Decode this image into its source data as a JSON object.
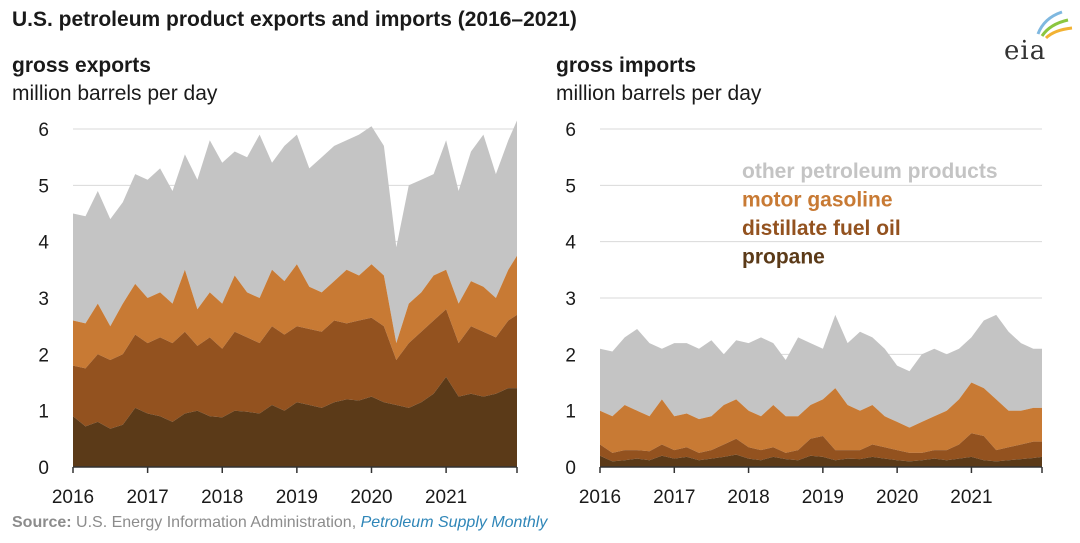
{
  "title": "U.S. petroleum product exports and imports (2016–2021)",
  "logo_text": "eia",
  "source": {
    "label": "Source:",
    "text": " U.S. Energy Information Administration, ",
    "publication": "Petroleum Supply Monthly"
  },
  "colors": {
    "propane": "#5b3a18",
    "distillate": "#93521f",
    "gasoline": "#c87a34",
    "other": "#c4c4c4",
    "grid": "#d9d9d9",
    "axis": "#333333"
  },
  "chart_data": [
    {
      "type": "area",
      "panel": "exports",
      "title": "gross exports",
      "ylabel": "million barrels per day",
      "ylim": [
        0,
        6
      ],
      "yticks": [
        0,
        1,
        2,
        3,
        4,
        5,
        6
      ],
      "xticks": [
        "2016",
        "2017",
        "2018",
        "2019",
        "2020",
        "2021"
      ],
      "xrange": [
        2016,
        2021.95
      ],
      "x": [
        2016.0,
        2016.167,
        2016.333,
        2016.5,
        2016.667,
        2016.833,
        2017.0,
        2017.167,
        2017.333,
        2017.5,
        2017.667,
        2017.833,
        2018.0,
        2018.167,
        2018.333,
        2018.5,
        2018.667,
        2018.833,
        2019.0,
        2019.167,
        2019.333,
        2019.5,
        2019.667,
        2019.833,
        2020.0,
        2020.167,
        2020.333,
        2020.5,
        2020.667,
        2020.833,
        2021.0,
        2021.167,
        2021.333,
        2021.5,
        2021.667,
        2021.833,
        2021.95
      ],
      "series": [
        {
          "name": "propane",
          "cumulative": [
            0.9,
            0.72,
            0.8,
            0.68,
            0.75,
            1.05,
            0.95,
            0.9,
            0.8,
            0.95,
            1.0,
            0.9,
            0.88,
            1.0,
            0.98,
            0.95,
            1.1,
            1.0,
            1.15,
            1.1,
            1.05,
            1.15,
            1.2,
            1.18,
            1.25,
            1.15,
            1.1,
            1.05,
            1.15,
            1.3,
            1.6,
            1.25,
            1.3,
            1.25,
            1.3,
            1.4,
            1.4
          ]
        },
        {
          "name": "distillate fuel oil",
          "cumulative": [
            1.8,
            1.75,
            2.0,
            1.9,
            2.0,
            2.35,
            2.2,
            2.3,
            2.2,
            2.4,
            2.15,
            2.3,
            2.1,
            2.4,
            2.3,
            2.2,
            2.5,
            2.35,
            2.5,
            2.45,
            2.4,
            2.6,
            2.55,
            2.6,
            2.65,
            2.5,
            1.9,
            2.2,
            2.4,
            2.6,
            2.8,
            2.2,
            2.5,
            2.4,
            2.3,
            2.6,
            2.7
          ]
        },
        {
          "name": "motor gasoline",
          "cumulative": [
            2.6,
            2.55,
            2.9,
            2.5,
            2.9,
            3.25,
            3.0,
            3.1,
            2.9,
            3.5,
            2.8,
            3.1,
            2.9,
            3.4,
            3.1,
            3.0,
            3.5,
            3.3,
            3.6,
            3.2,
            3.1,
            3.3,
            3.5,
            3.4,
            3.6,
            3.4,
            2.2,
            2.9,
            3.1,
            3.4,
            3.5,
            2.9,
            3.3,
            3.2,
            3.0,
            3.5,
            3.75
          ]
        },
        {
          "name": "other petroleum products",
          "cumulative": [
            4.5,
            4.45,
            4.9,
            4.4,
            4.7,
            5.2,
            5.1,
            5.3,
            4.9,
            5.55,
            5.1,
            5.8,
            5.4,
            5.6,
            5.5,
            5.9,
            5.4,
            5.7,
            5.9,
            5.3,
            5.5,
            5.7,
            5.8,
            5.9,
            6.05,
            5.7,
            3.9,
            5.0,
            5.1,
            5.2,
            5.8,
            4.9,
            5.6,
            5.9,
            5.2,
            5.8,
            6.15
          ]
        }
      ]
    },
    {
      "type": "area",
      "panel": "imports",
      "title": "gross imports",
      "ylabel": "million barrels per day",
      "ylim": [
        0,
        6
      ],
      "yticks": [
        0,
        1,
        2,
        3,
        4,
        5,
        6
      ],
      "xticks": [
        "2016",
        "2017",
        "2018",
        "2019",
        "2020",
        "2021"
      ],
      "xrange": [
        2016,
        2021.95
      ],
      "x": [
        2016.0,
        2016.167,
        2016.333,
        2016.5,
        2016.667,
        2016.833,
        2017.0,
        2017.167,
        2017.333,
        2017.5,
        2017.667,
        2017.833,
        2018.0,
        2018.167,
        2018.333,
        2018.5,
        2018.667,
        2018.833,
        2019.0,
        2019.167,
        2019.333,
        2019.5,
        2019.667,
        2019.833,
        2020.0,
        2020.167,
        2020.333,
        2020.5,
        2020.667,
        2020.833,
        2021.0,
        2021.167,
        2021.333,
        2021.5,
        2021.667,
        2021.833,
        2021.95
      ],
      "series": [
        {
          "name": "propane",
          "cumulative": [
            0.2,
            0.1,
            0.12,
            0.15,
            0.12,
            0.2,
            0.15,
            0.18,
            0.12,
            0.15,
            0.18,
            0.22,
            0.15,
            0.12,
            0.18,
            0.14,
            0.12,
            0.2,
            0.18,
            0.12,
            0.15,
            0.14,
            0.18,
            0.15,
            0.12,
            0.1,
            0.12,
            0.15,
            0.12,
            0.15,
            0.18,
            0.12,
            0.1,
            0.12,
            0.14,
            0.16,
            0.18
          ]
        },
        {
          "name": "distillate fuel oil",
          "cumulative": [
            0.4,
            0.25,
            0.3,
            0.3,
            0.28,
            0.4,
            0.3,
            0.35,
            0.25,
            0.3,
            0.4,
            0.5,
            0.35,
            0.3,
            0.35,
            0.25,
            0.3,
            0.5,
            0.55,
            0.3,
            0.3,
            0.3,
            0.4,
            0.35,
            0.3,
            0.25,
            0.25,
            0.3,
            0.3,
            0.4,
            0.6,
            0.55,
            0.3,
            0.35,
            0.4,
            0.45,
            0.45
          ]
        },
        {
          "name": "motor gasoline",
          "cumulative": [
            1.0,
            0.9,
            1.1,
            1.0,
            0.9,
            1.2,
            0.9,
            0.95,
            0.85,
            0.9,
            1.1,
            1.2,
            1.0,
            0.9,
            1.1,
            0.9,
            0.9,
            1.1,
            1.2,
            1.4,
            1.1,
            1.0,
            1.1,
            0.9,
            0.8,
            0.7,
            0.8,
            0.9,
            1.0,
            1.2,
            1.5,
            1.4,
            1.2,
            1.0,
            1.0,
            1.05,
            1.05
          ]
        },
        {
          "name": "other petroleum products",
          "cumulative": [
            2.1,
            2.05,
            2.3,
            2.45,
            2.2,
            2.1,
            2.2,
            2.2,
            2.1,
            2.25,
            2.0,
            2.25,
            2.2,
            2.3,
            2.2,
            1.9,
            2.3,
            2.2,
            2.1,
            2.7,
            2.2,
            2.4,
            2.3,
            2.1,
            1.8,
            1.7,
            2.0,
            2.1,
            2.0,
            2.1,
            2.3,
            2.6,
            2.7,
            2.4,
            2.2,
            2.1,
            2.1
          ]
        }
      ],
      "legend": [
        "other petroleum products",
        "motor gasoline",
        "distillate fuel oil",
        "propane"
      ]
    }
  ]
}
